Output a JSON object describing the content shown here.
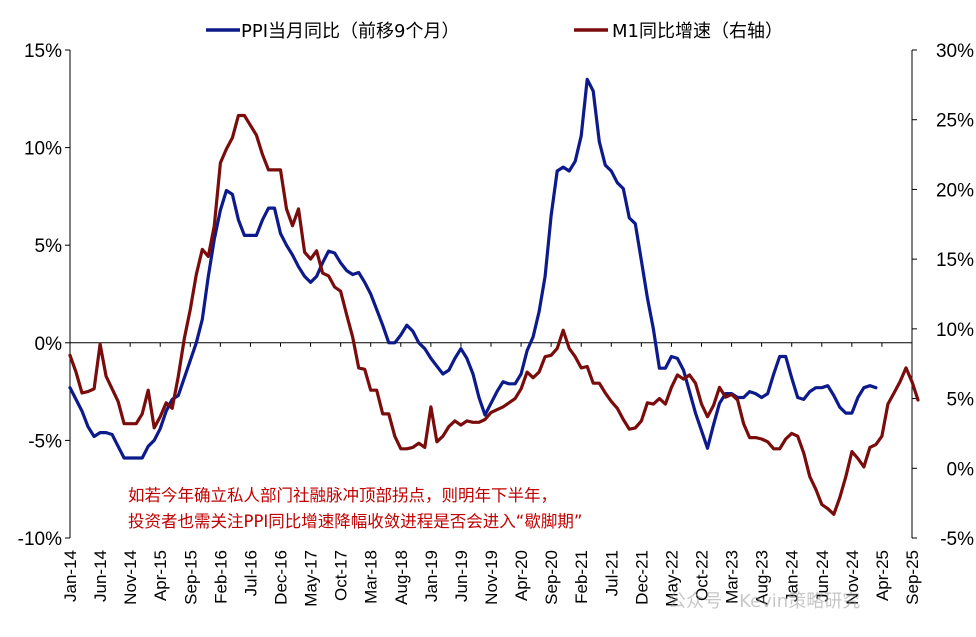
{
  "chart_data": {
    "type": "line",
    "legend": {
      "position": "top",
      "items": [
        {
          "label": "PPI当月同比（前移9个月）",
          "color": "#0d1a8c"
        },
        {
          "label": "M1同比增速（右轴）",
          "color": "#7a0c0c"
        }
      ]
    },
    "y_left": {
      "min": -10,
      "max": 15,
      "ticks": [
        "15%",
        "10%",
        "5%",
        "0%",
        "-5%",
        "-10%"
      ]
    },
    "y_right": {
      "min": -5,
      "max": 30,
      "ticks": [
        "30%",
        "25%",
        "20%",
        "15%",
        "10%",
        "5%",
        "0%",
        "-5%"
      ]
    },
    "x": {
      "start": "2014-01",
      "end": "2025-09",
      "ticklabels": [
        "Jan-14",
        "Jun-14",
        "Nov-14",
        "Apr-15",
        "Sep-15",
        "Feb-16",
        "Jul-16",
        "Dec-16",
        "May-17",
        "Oct-17",
        "Mar-18",
        "Aug-18",
        "Jan-19",
        "Jun-19",
        "Nov-19",
        "Apr-20",
        "Sep-20",
        "Feb-21",
        "Jul-21",
        "Dec-21",
        "May-22",
        "Oct-22",
        "Mar-23",
        "Aug-23",
        "Jan-24",
        "Jun-24",
        "Nov-24",
        "Apr-25",
        "Sep-25"
      ]
    },
    "series": [
      {
        "name": "PPI当月同比（前移9个月）",
        "axis": "left",
        "color": "#0d1a8c",
        "start": "2014-01",
        "values": [
          -2.3,
          -2.9,
          -3.5,
          -4.3,
          -4.8,
          -4.6,
          -4.6,
          -4.7,
          -5.3,
          -5.9,
          -5.9,
          -5.9,
          -5.9,
          -5.3,
          -5.0,
          -4.4,
          -3.5,
          -2.9,
          -2.7,
          -1.8,
          -0.9,
          0.0,
          1.2,
          3.4,
          5.3,
          6.8,
          7.8,
          7.6,
          6.3,
          5.5,
          5.5,
          5.5,
          6.3,
          6.9,
          6.9,
          5.6,
          5.0,
          4.5,
          3.9,
          3.4,
          3.1,
          3.4,
          4.1,
          4.7,
          4.6,
          4.1,
          3.7,
          3.5,
          3.6,
          3.1,
          2.5,
          1.7,
          0.9,
          0.0,
          0.0,
          0.4,
          0.9,
          0.6,
          0.0,
          -0.3,
          -0.8,
          -1.2,
          -1.6,
          -1.4,
          -0.8,
          -0.3,
          -0.8,
          -1.6,
          -2.8,
          -3.7,
          -3.1,
          -2.5,
          -2.0,
          -2.1,
          -2.1,
          -1.6,
          -0.4,
          0.3,
          1.6,
          3.4,
          6.5,
          8.8,
          9.0,
          8.8,
          9.3,
          10.6,
          13.5,
          12.9,
          10.3,
          9.1,
          8.8,
          8.2,
          7.9,
          6.4,
          6.1,
          4.2,
          2.3,
          0.7,
          -1.3,
          -1.3,
          -0.7,
          -0.8,
          -1.4,
          -2.5,
          -3.6,
          -4.5,
          -5.4,
          -4.2,
          -3.1,
          -2.6,
          -2.6,
          -2.8,
          -2.8,
          -2.5,
          -2.6,
          -2.8,
          -2.6,
          -1.6,
          -0.7,
          -0.7,
          -1.8,
          -2.8,
          -2.9,
          -2.5,
          -2.3,
          -2.3,
          -2.2,
          -2.7,
          -3.3,
          -3.6,
          -3.6,
          -2.8,
          -2.3,
          -2.2,
          -2.3
        ]
      },
      {
        "name": "M1同比增速（右轴）",
        "axis": "right",
        "color": "#7a0c0c",
        "start": "2014-01",
        "values": [
          8.1,
          6.9,
          5.4,
          5.5,
          5.7,
          8.9,
          6.6,
          5.7,
          4.8,
          3.2,
          3.2,
          3.2,
          3.9,
          5.6,
          2.9,
          3.7,
          4.7,
          4.3,
          6.6,
          9.3,
          11.4,
          13.9,
          15.7,
          15.2,
          17.4,
          21.9,
          22.9,
          23.7,
          25.3,
          25.3,
          24.6,
          23.9,
          22.5,
          21.4,
          21.4,
          21.4,
          18.6,
          17.4,
          18.6,
          15.5,
          15.0,
          15.6,
          14.0,
          13.8,
          13.0,
          12.7,
          11.0,
          9.4,
          7.2,
          7.1,
          5.6,
          5.6,
          3.9,
          3.9,
          2.3,
          1.4,
          1.4,
          1.5,
          1.8,
          1.5,
          4.4,
          1.9,
          2.3,
          3.0,
          3.4,
          3.1,
          3.4,
          3.3,
          3.3,
          3.5,
          4.0,
          4.2,
          4.4,
          4.7,
          5.0,
          5.7,
          6.9,
          6.5,
          6.9,
          8.0,
          8.1,
          8.6,
          9.9,
          8.6,
          8.0,
          7.2,
          7.3,
          6.1,
          6.1,
          5.4,
          4.8,
          4.3,
          3.5,
          2.8,
          2.9,
          3.4,
          4.7,
          4.6,
          5.0,
          4.6,
          5.8,
          6.7,
          6.4,
          6.7,
          6.1,
          4.6,
          3.7,
          4.5,
          5.8,
          5.1,
          5.3,
          4.9,
          3.2,
          2.2,
          2.2,
          2.1,
          1.9,
          1.4,
          1.4,
          2.1,
          2.5,
          2.3,
          1.1,
          -0.6,
          -1.5,
          -2.6,
          -2.9,
          -3.3,
          -2.1,
          -0.6,
          1.2,
          0.7,
          0.1,
          1.5,
          1.7,
          2.3,
          4.6,
          5.4,
          6.2,
          7.2,
          6.2,
          4.9
        ]
      }
    ]
  },
  "annotation": {
    "line1": "如若今年确立私人部门社融脉冲顶部拐点，则明年下半年，",
    "line2": "投资者也需关注PPI同比增速降幅收敛进程是否会进入“歇脚期”"
  },
  "watermark": "公众号 · Kevin策略研究"
}
